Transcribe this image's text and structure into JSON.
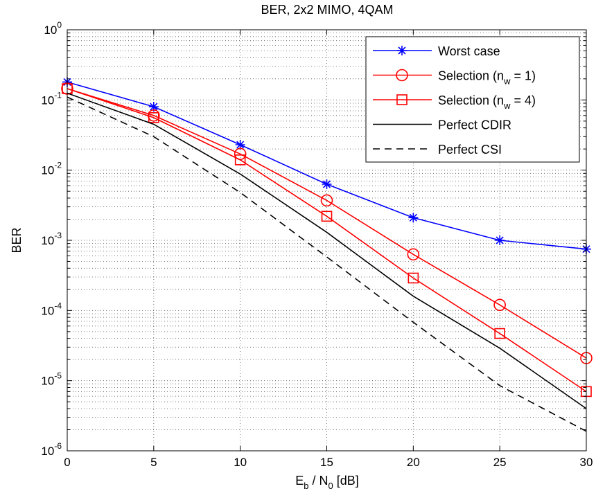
{
  "chart_data": {
    "type": "line",
    "title": "BER, 2x2 MIMO, 4QAM",
    "xlabel": {
      "main": "E",
      "sub1": "b",
      "sep": " / N",
      "sub2": "0",
      "unit": "  [dB]"
    },
    "ylabel": "BER",
    "xlim": [
      0,
      30
    ],
    "ylim": [
      1e-06,
      1
    ],
    "yscale": "log",
    "grid": true,
    "legend_position": "top-right",
    "x": [
      0,
      5,
      10,
      15,
      20,
      25,
      30
    ],
    "x_tick_labels": [
      "0",
      "5",
      "10",
      "15",
      "20",
      "25",
      "30"
    ],
    "y_tick_labels": [
      {
        "base": "10",
        "exp": "0"
      },
      {
        "base": "10",
        "exp": "-1"
      },
      {
        "base": "10",
        "exp": "-2"
      },
      {
        "base": "10",
        "exp": "-3"
      },
      {
        "base": "10",
        "exp": "-4"
      },
      {
        "base": "10",
        "exp": "-5"
      },
      {
        "base": "10",
        "exp": "-6"
      }
    ],
    "series": [
      {
        "id": "worst",
        "name": "Worst case",
        "color": "#0000ff",
        "marker": "asterisk",
        "dash": "solid",
        "values": [
          0.18,
          0.08,
          0.023,
          0.0063,
          0.0021,
          0.001,
          0.00075
        ]
      },
      {
        "id": "sel1",
        "name": {
          "pre": "Selection (n",
          "sub": "w",
          "post": " = 1)"
        },
        "color": "#ff0000",
        "marker": "circle",
        "dash": "solid",
        "values": [
          0.145,
          0.06,
          0.017,
          0.0037,
          0.00063,
          0.00012,
          2.1e-05
        ]
      },
      {
        "id": "sel4",
        "name": {
          "pre": "Selection (n",
          "sub": "w",
          "post": " = 4)"
        },
        "color": "#ff0000",
        "marker": "square",
        "dash": "solid",
        "values": [
          0.145,
          0.056,
          0.014,
          0.0022,
          0.00029,
          4.7e-05,
          7e-06
        ]
      },
      {
        "id": "cdir",
        "name": "Perfect CDIR",
        "color": "#000000",
        "marker": "none",
        "dash": "solid",
        "values": [
          0.125,
          0.045,
          0.0088,
          0.0013,
          0.00016,
          2.9e-05,
          4e-06
        ]
      },
      {
        "id": "csi",
        "name": "Perfect CSI",
        "color": "#000000",
        "marker": "none",
        "dash": "dashed",
        "values": [
          0.11,
          0.03,
          0.0048,
          0.00058,
          6.8e-05,
          8.5e-06,
          1.9e-06
        ]
      }
    ]
  }
}
